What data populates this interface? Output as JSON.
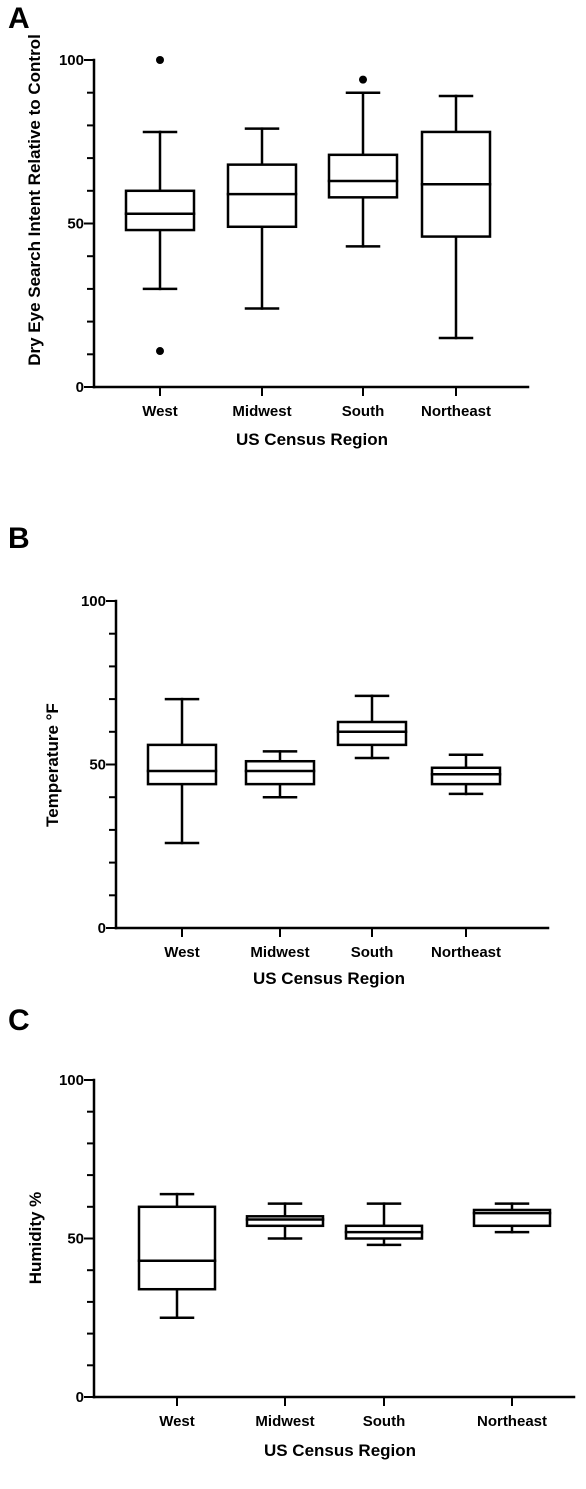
{
  "figure": {
    "colors": {
      "stroke": "#000000",
      "background": "#ffffff"
    }
  },
  "chart_data": [
    {
      "panel": "A",
      "type": "box",
      "title": "",
      "xlabel": "US Census Region",
      "ylabel": "Dry Eye Search Intent Relative to Control",
      "ylim": [
        0,
        100
      ],
      "yticks": [
        0,
        50,
        100
      ],
      "y_minor_step": 10,
      "categories": [
        "West",
        "Midwest",
        "South",
        "Northeast"
      ],
      "boxes": [
        {
          "min": 30,
          "q1": 48,
          "median": 53,
          "q3": 60,
          "max": 78,
          "outliers": [
            100,
            11
          ]
        },
        {
          "min": 24,
          "q1": 49,
          "median": 59,
          "q3": 68,
          "max": 79,
          "outliers": []
        },
        {
          "min": 43,
          "q1": 58,
          "median": 63,
          "q3": 71,
          "max": 90,
          "outliers": [
            94
          ]
        },
        {
          "min": 15,
          "q1": 46,
          "median": 62,
          "q3": 78,
          "max": 89,
          "outliers": []
        }
      ],
      "grid": false,
      "legend": "none"
    },
    {
      "panel": "B",
      "type": "box",
      "title": "",
      "xlabel": "US Census Region",
      "ylabel": "Temperature °F",
      "ylim": [
        0,
        100
      ],
      "yticks": [
        0,
        50,
        100
      ],
      "y_minor_step": 10,
      "categories": [
        "West",
        "Midwest",
        "South",
        "Northeast"
      ],
      "boxes": [
        {
          "min": 26,
          "q1": 44,
          "median": 48,
          "q3": 56,
          "max": 70,
          "outliers": []
        },
        {
          "min": 40,
          "q1": 44,
          "median": 48,
          "q3": 51,
          "max": 54,
          "outliers": []
        },
        {
          "min": 52,
          "q1": 56,
          "median": 60,
          "q3": 63,
          "max": 71,
          "outliers": []
        },
        {
          "min": 41,
          "q1": 44,
          "median": 47,
          "q3": 49,
          "max": 53,
          "outliers": []
        }
      ],
      "grid": false,
      "legend": "none"
    },
    {
      "panel": "C",
      "type": "box",
      "title": "",
      "xlabel": "US Census Region",
      "ylabel": "Humidity %",
      "ylim": [
        0,
        100
      ],
      "yticks": [
        0,
        50,
        100
      ],
      "y_minor_step": 10,
      "categories": [
        "West",
        "Midwest",
        "South",
        "Northeast"
      ],
      "boxes": [
        {
          "min": 25,
          "q1": 34,
          "median": 43,
          "q3": 60,
          "max": 64,
          "outliers": []
        },
        {
          "min": 50,
          "q1": 54,
          "median": 56,
          "q3": 57,
          "max": 61,
          "outliers": []
        },
        {
          "min": 48,
          "q1": 50,
          "median": 52,
          "q3": 54,
          "max": 61,
          "outliers": []
        },
        {
          "min": 52,
          "q1": 54,
          "median": 58,
          "q3": 59,
          "max": 61,
          "outliers": []
        }
      ],
      "grid": false,
      "legend": "none"
    }
  ]
}
